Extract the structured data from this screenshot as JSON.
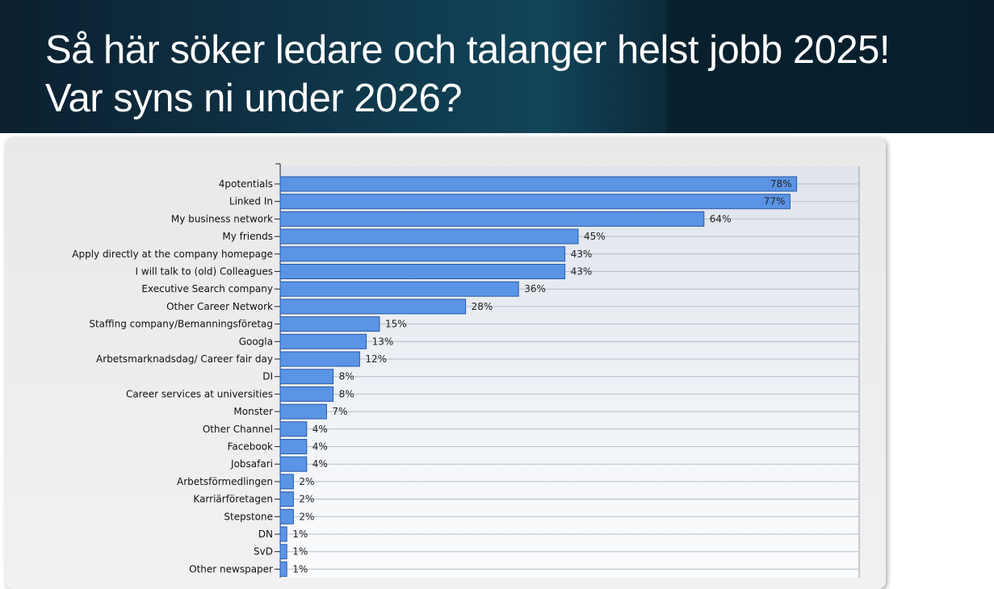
{
  "title_lines": [
    "Så här söker ledare och talanger helst jobb 2025!",
    "Var syns ni under 2026?"
  ],
  "colors": {
    "bar": "#5a94e4",
    "bar_stroke": "#2a5aa8",
    "header": "#0f3a4e"
  },
  "chart_data": {
    "type": "bar",
    "orientation": "horizontal",
    "categories": [
      "4potentials",
      "Linked In",
      "My business network",
      "My friends",
      "Apply directly at the company homepage",
      "I will talk to (old) Colleagues",
      "Executive Search company",
      "Other Career Network",
      "Staffing company/Bemanningsföretag",
      "Googla",
      "Arbetsmarknadsdag/ Career fair day",
      "DI",
      "Career services at universities",
      "Monster",
      "Other Channel",
      "Facebook",
      "Jobsafari",
      "Arbetsförmedlingen",
      "Karriärföretagen",
      "Stepstone",
      "DN",
      "SvD",
      "Other newspaper"
    ],
    "values": [
      78,
      77,
      64,
      45,
      43,
      43,
      36,
      28,
      15,
      13,
      12,
      8,
      8,
      7,
      4,
      4,
      4,
      2,
      2,
      2,
      1,
      1,
      1
    ],
    "value_labels": [
      "78%",
      "77%",
      "64%",
      "45%",
      "43%",
      "43%",
      "36%",
      "28%",
      "15%",
      "13%",
      "12%",
      "8%",
      "8%",
      "7%",
      "4%",
      "4%",
      "4%",
      "2%",
      "2%",
      "2%",
      "1%",
      "1%",
      "1%"
    ],
    "xlim": [
      0,
      80
    ],
    "grid": true,
    "title": "",
    "xlabel": "",
    "ylabel": ""
  }
}
